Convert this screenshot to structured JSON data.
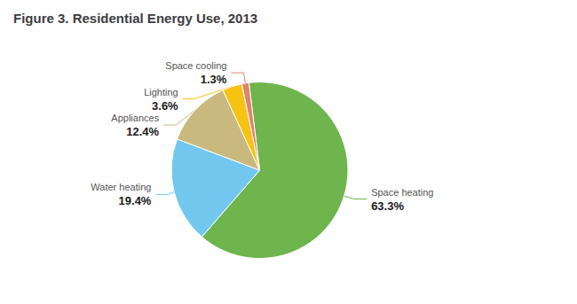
{
  "chart_data": {
    "type": "pie",
    "title": "Figure 3. Residential Energy Use, 2013",
    "categories": [
      "Space heating",
      "Water heating",
      "Appliances",
      "Lighting",
      "Space cooling"
    ],
    "values": [
      63.3,
      19.4,
      12.4,
      3.6,
      1.3
    ],
    "value_labels": [
      "63.3%",
      "19.4%",
      "12.4%",
      "3.6%",
      "1.3%"
    ],
    "colors": [
      "#6db54c",
      "#72c7ee",
      "#c9b97e",
      "#f6c315",
      "#e0836b"
    ],
    "data_labels": true
  }
}
